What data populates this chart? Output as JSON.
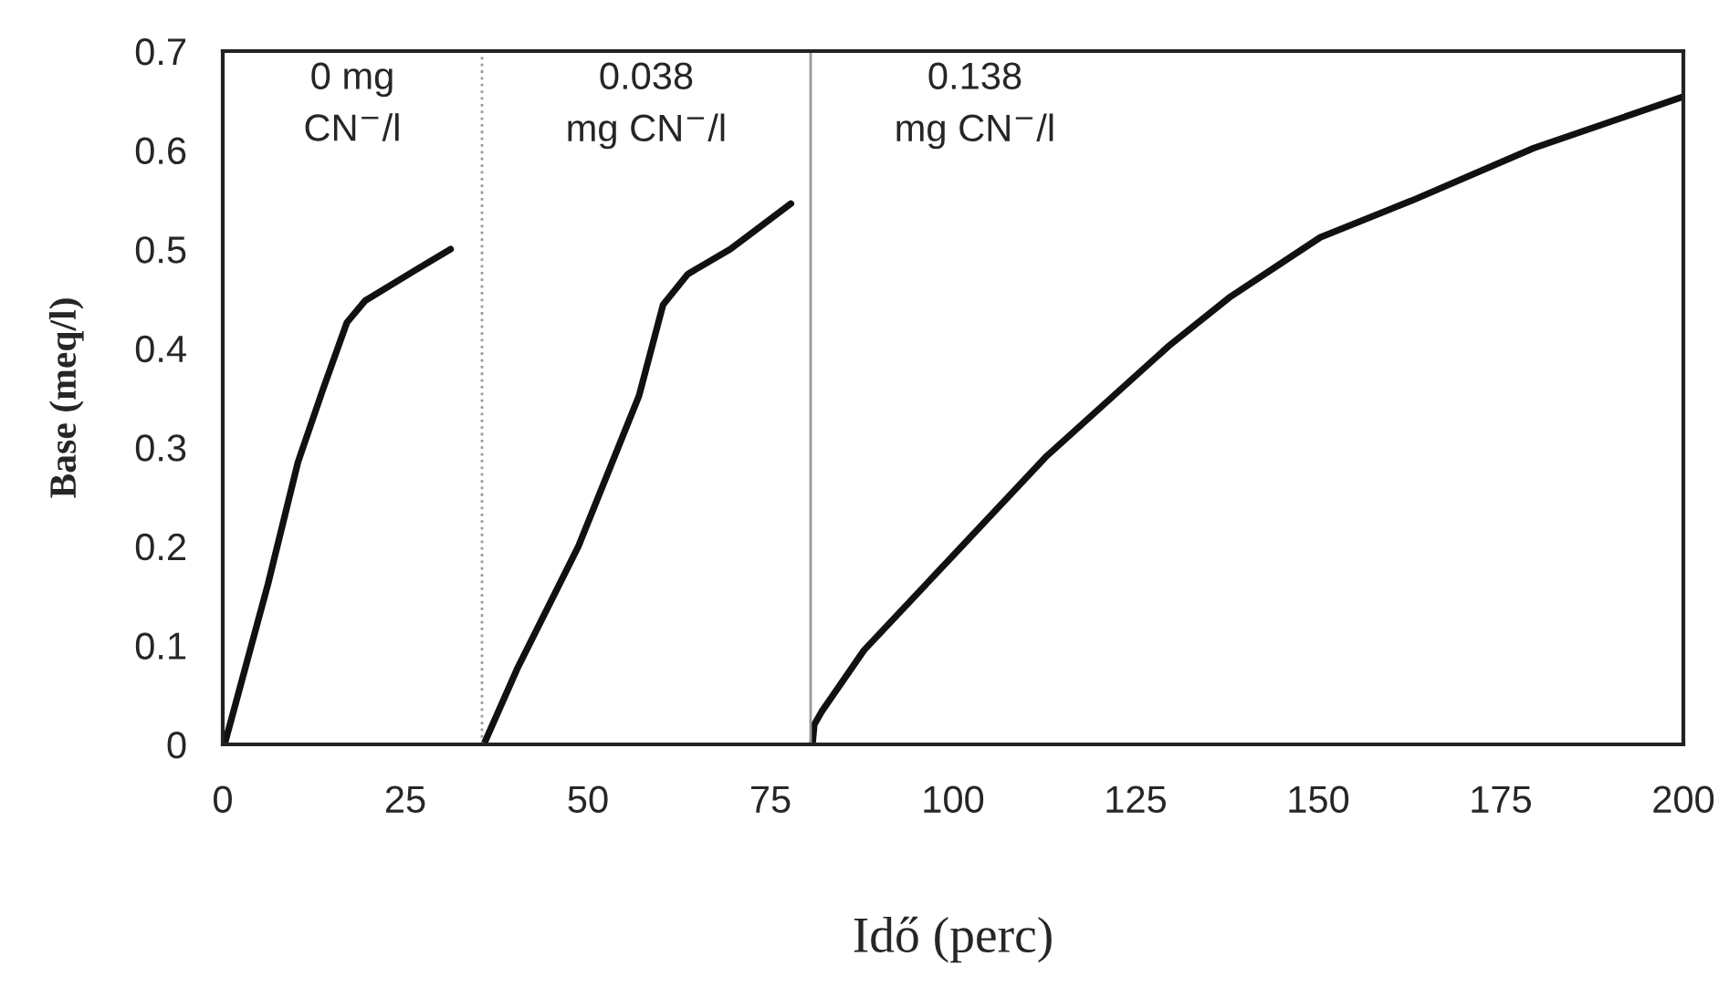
{
  "chart_data": {
    "type": "line",
    "xlabel": "Idő (perc)",
    "ylabel": "Base (meq/l)",
    "xlim": [
      0,
      200
    ],
    "xticks": [
      0,
      25,
      50,
      75,
      100,
      125,
      150,
      175,
      200
    ],
    "ylim": [
      0,
      0.7
    ],
    "yticks": [
      0,
      0.1,
      0.2,
      0.3,
      0.4,
      0.5,
      0.6,
      0.7
    ],
    "grid": false,
    "legend": false,
    "marker": "none",
    "line_style": "solid",
    "series": [
      {
        "color": "#111111",
        "x": [
          0.25,
          6.2,
          10.3,
          13.7,
          17,
          19.5,
          26.2,
          31.2
        ],
        "values": [
          0,
          0.162,
          0.285,
          0.358,
          0.426,
          0.448,
          0.478,
          0.5
        ]
      },
      {
        "color": "#111111",
        "x": [
          35.75,
          40.3,
          48.7,
          57,
          60.3,
          63.7,
          69.5,
          77.8
        ],
        "values": [
          0,
          0.076,
          0.2,
          0.352,
          0.444,
          0.475,
          0.5,
          0.546
        ]
      },
      {
        "color": "#111111",
        "x": [
          80.75,
          81,
          82,
          87.8,
          100.3,
          112.8,
          129.5,
          137.8,
          150.3,
          162.8,
          179.5,
          200
        ],
        "values": [
          0,
          0.02,
          0.033,
          0.095,
          0.193,
          0.291,
          0.402,
          0.451,
          0.512,
          0.549,
          0.602,
          0.654
        ]
      }
    ],
    "ref_lines": [
      {
        "axis": "x",
        "value": 35.5,
        "color": "#999999",
        "line_style": "dotted"
      },
      {
        "axis": "x",
        "value": 80.5,
        "color": "#999999",
        "line_style": "solid"
      }
    ],
    "annotations": [
      "0 mg\nCN$^{−}$/l",
      "0.038\nmg CN$^{−}$/l",
      "0.138\nmg CN$^{−}$/l"
    ]
  }
}
